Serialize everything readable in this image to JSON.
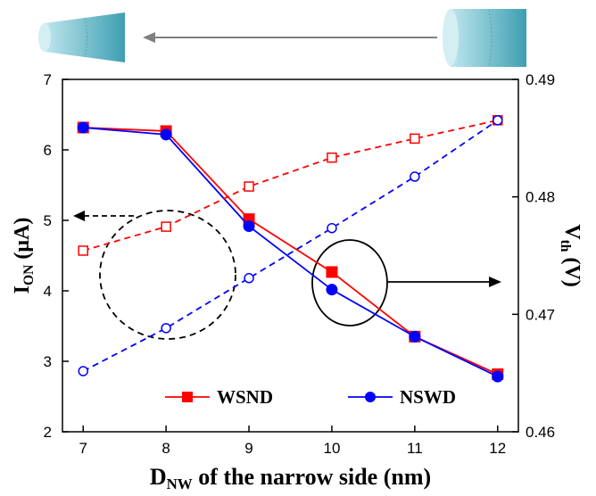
{
  "chart_data": {
    "type": "line",
    "x": [
      7,
      8,
      9,
      10,
      11,
      12
    ],
    "xlim": [
      6.75,
      12.25
    ],
    "xticks": [
      7,
      8,
      9,
      10,
      11,
      12
    ],
    "ylim": [
      2,
      7
    ],
    "yticks": [
      2,
      3,
      4,
      5,
      6,
      7
    ],
    "y2lim": [
      0.46,
      0.49
    ],
    "y2ticks": [
      0.46,
      0.47,
      0.48,
      0.49
    ],
    "x_label": {
      "main": "D",
      "sub": "NW",
      "rest": " of the narrow side (nm)"
    },
    "y_label": {
      "main": "I",
      "sub": "ON",
      "rest": " (μA)"
    },
    "y2_label": {
      "main": "V",
      "sub": "th",
      "rest": " (V)"
    },
    "series": [
      {
        "name": "WSND",
        "color": "#ff0000",
        "marker": "square",
        "axis": "y2",
        "values": [
          0.4859,
          0.4856,
          0.4781,
          0.4736,
          0.4681,
          0.4649
        ]
      },
      {
        "name": "NSWD",
        "color": "#0000ff",
        "marker": "circle",
        "axis": "y2",
        "values": [
          0.4859,
          0.4853,
          0.4775,
          0.4721,
          0.4681,
          0.4647
        ]
      },
      {
        "color": "#ff0000",
        "marker": "square",
        "dashed": true,
        "open": true,
        "values": [
          4.57,
          4.91,
          5.48,
          5.89,
          6.16,
          6.42
        ]
      },
      {
        "color": "#0000ff",
        "marker": "circle",
        "dashed": true,
        "open": true,
        "values": [
          2.86,
          3.47,
          4.18,
          4.89,
          5.62,
          6.42
        ]
      }
    ]
  }
}
